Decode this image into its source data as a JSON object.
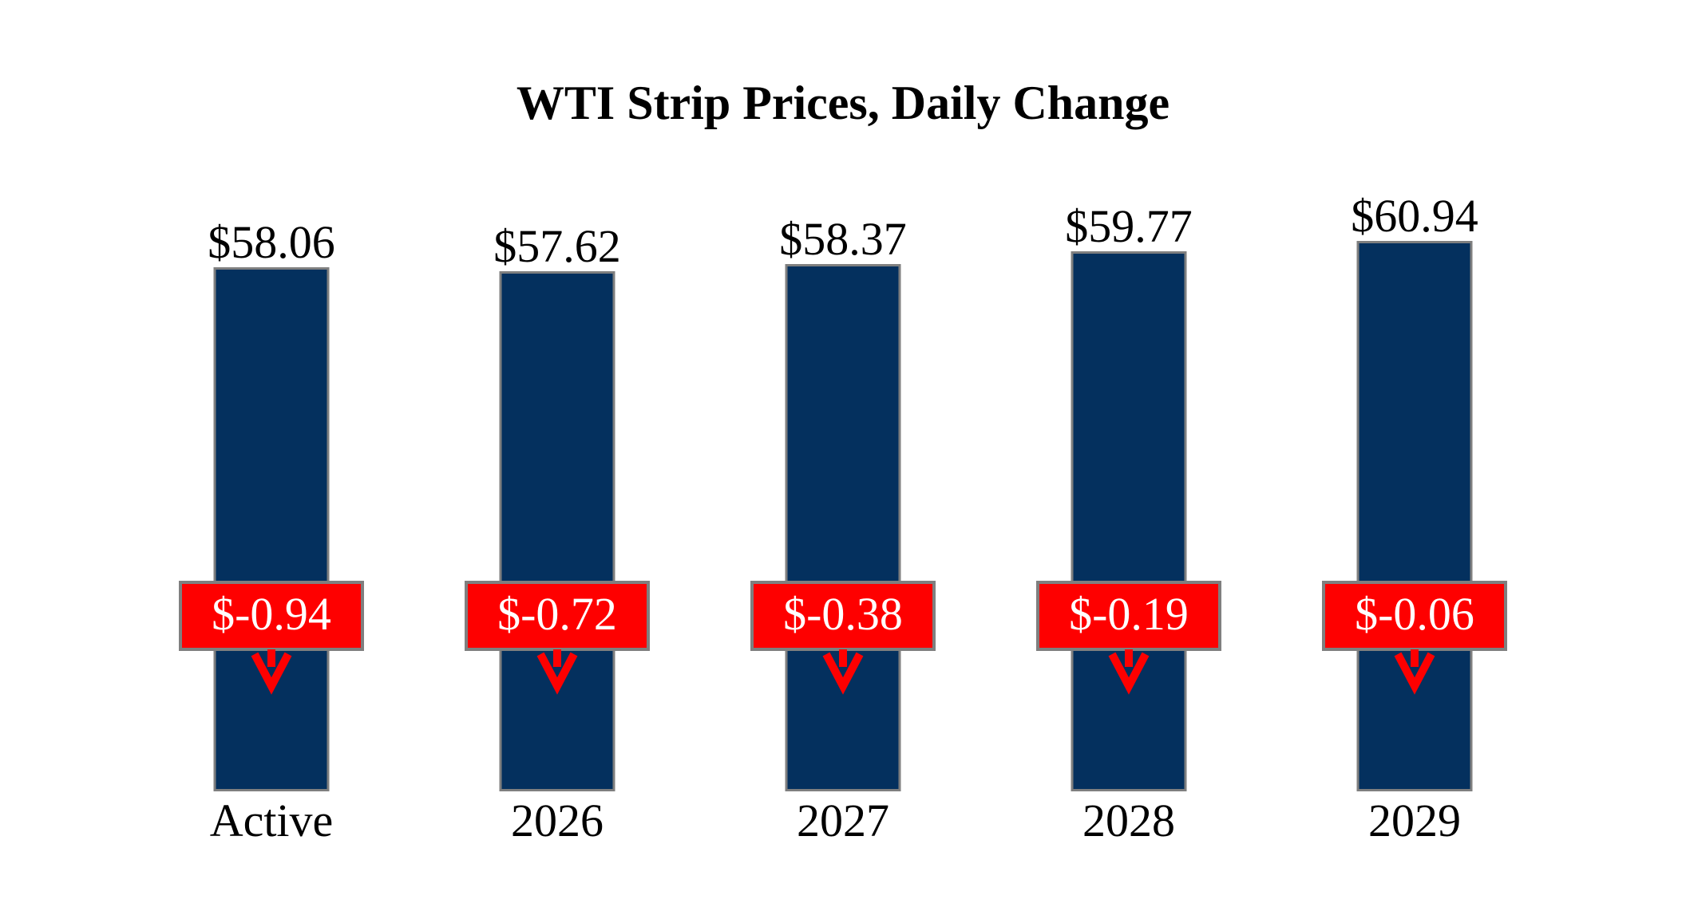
{
  "title": "WTI Strip Prices, Daily Change",
  "chart_data": {
    "type": "bar",
    "title": "WTI Strip Prices, Daily Change",
    "categories": [
      "Active",
      "2026",
      "2027",
      "2028",
      "2029"
    ],
    "series": [
      {
        "name": "WTI Strip Price",
        "values": [
          58.06,
          57.62,
          58.37,
          59.77,
          60.94
        ]
      },
      {
        "name": "Daily Change",
        "values": [
          -0.94,
          -0.72,
          -0.38,
          -0.19,
          -0.06
        ]
      }
    ],
    "price_labels": [
      "$58.06",
      "$57.62",
      "$58.37",
      "$59.77",
      "$60.94"
    ],
    "change_labels": [
      "$-0.94",
      "$-0.72",
      "$-0.38",
      "$-0.19",
      "$-0.06"
    ],
    "xlabel": "",
    "ylabel": "",
    "ylim": [
      0,
      65
    ],
    "grid": false,
    "legend": false,
    "annotations": "red daily-change boxes with downward arrows overlaid on each bar at a fixed height"
  },
  "colors": {
    "bar_fill": "#04305E",
    "bar_border": "#7F7F7F",
    "change_fill": "#FE0000",
    "change_text": "#FFFFFF",
    "label_text": "#000000"
  }
}
